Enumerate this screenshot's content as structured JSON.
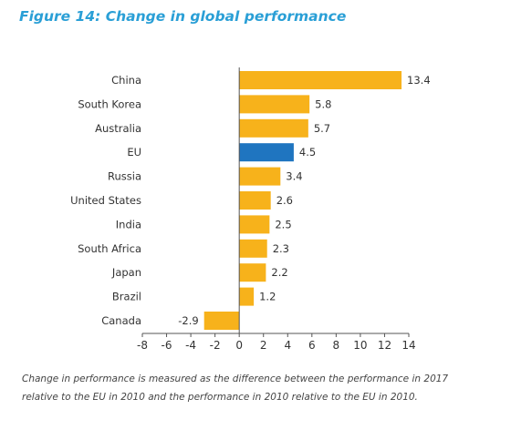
{
  "figure": {
    "title": "Figure 14: Change in global performance",
    "caption_lines": [
      "Change in performance is measured as the difference between the performance in 2017",
      "relative to the EU in 2010 and the performance in 2010 relative to the EU in 2010."
    ]
  },
  "colors": {
    "default_bar": "#f7b21b",
    "highlight_bar": "#1f75c0",
    "title": "#2a9fd6"
  },
  "chart_data": {
    "type": "bar",
    "orientation": "horizontal",
    "title": "Figure 14: Change in global performance",
    "xlabel": "",
    "ylabel": "",
    "categories": [
      "China",
      "South Korea",
      "Australia",
      "EU",
      "Russia",
      "United States",
      "India",
      "South Africa",
      "Japan",
      "Brazil",
      "Canada"
    ],
    "values": [
      13.4,
      5.8,
      5.7,
      4.5,
      3.4,
      2.6,
      2.5,
      2.3,
      2.2,
      1.2,
      -2.9
    ],
    "value_labels": [
      "13.4",
      "5.8",
      "5.7",
      "4.5",
      "3.4",
      "2.6",
      "2.5",
      "2.3",
      "2.2",
      "1.2",
      "-2.9"
    ],
    "highlight": "EU",
    "xlim": [
      -8,
      14
    ],
    "xticks": [
      -8,
      -6,
      -4,
      -2,
      0,
      2,
      4,
      6,
      8,
      10,
      12,
      14
    ],
    "grid": false,
    "legend": "none"
  }
}
